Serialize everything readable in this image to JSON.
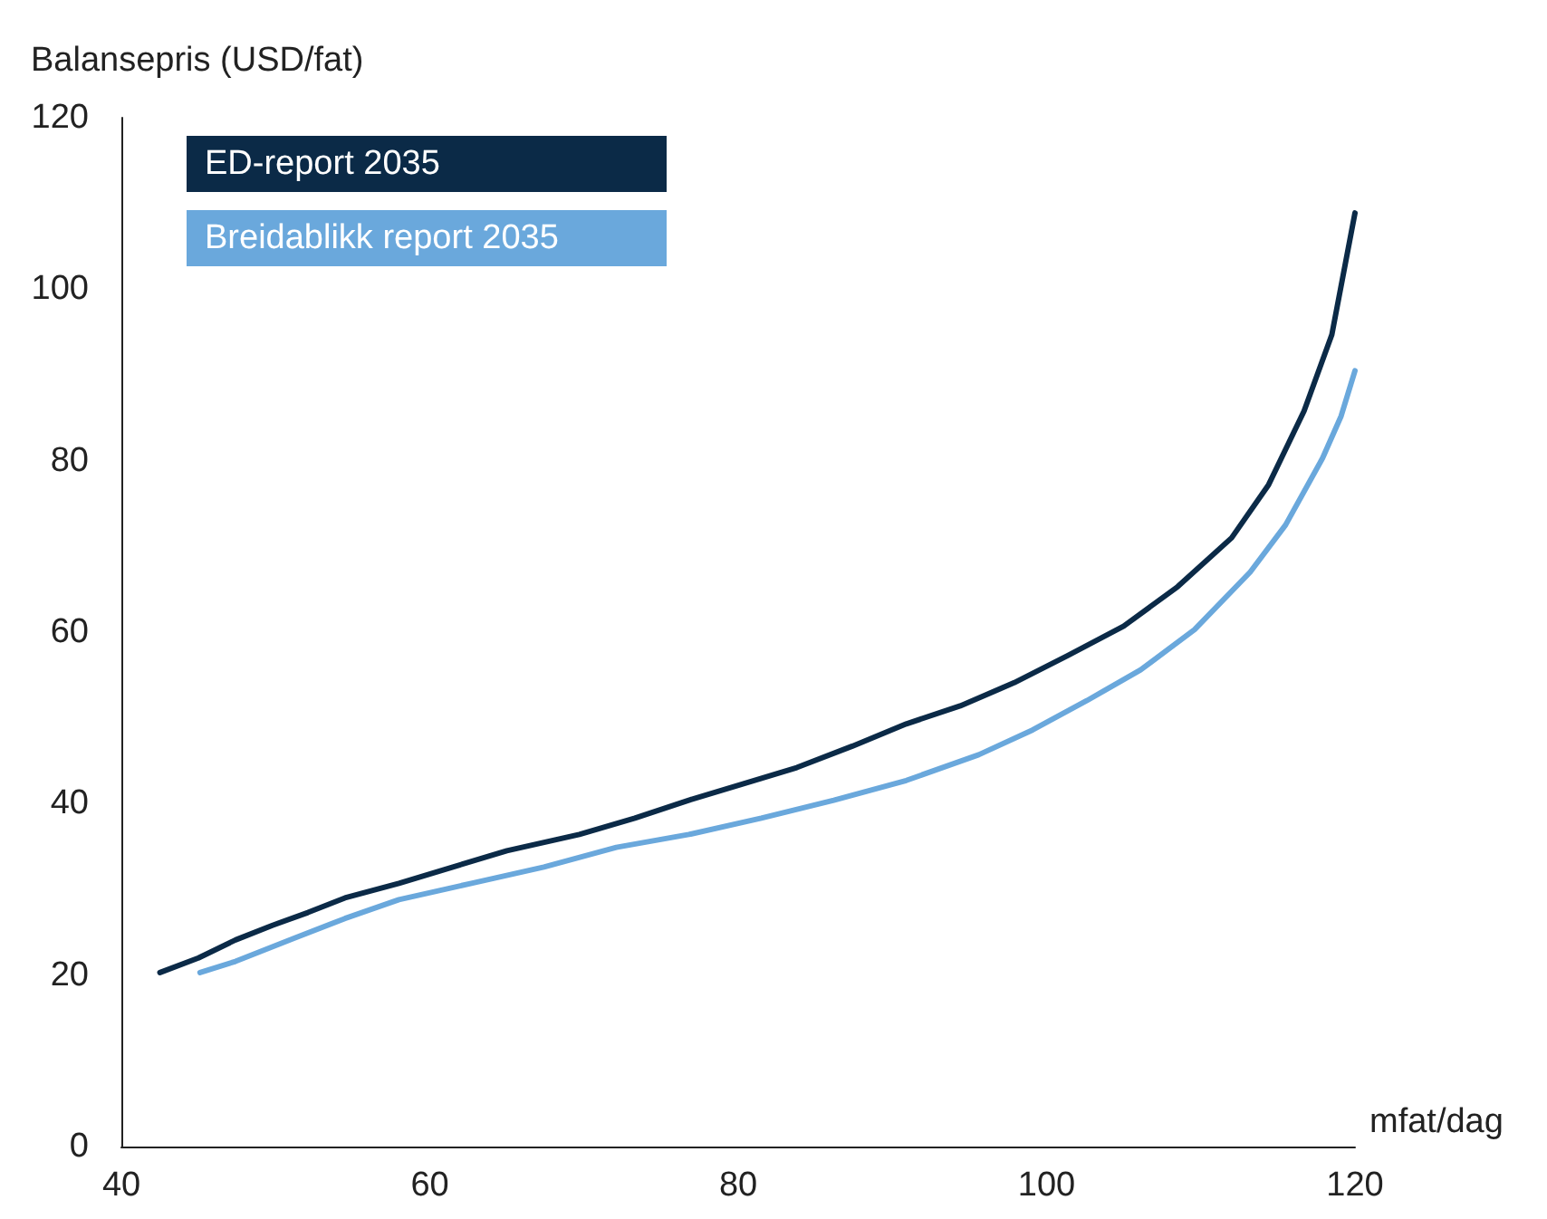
{
  "chart_data": {
    "type": "line",
    "xlabel": "mfat/dag",
    "ylabel": "Balansepris (USD/fat)",
    "xlim": [
      40,
      120
    ],
    "xticks": [
      40,
      60,
      80,
      100,
      120
    ],
    "ylim": [
      0,
      120
    ],
    "yticks": [
      0,
      20,
      40,
      60,
      80,
      100,
      120
    ],
    "grid": false,
    "legend": "top left",
    "marker": "none",
    "line_style": "solid",
    "series": [
      {
        "name": "ED-report 2035",
        "color": "#0b2a47",
        "x": [
          42.5,
          45,
          47.4,
          49.8,
          52.1,
          54.5,
          58,
          61.5,
          65,
          69.7,
          73.3,
          76.8,
          80.3,
          83.8,
          87.4,
          90.9,
          94.4,
          97.9,
          101.4,
          105,
          108.5,
          112,
          114.4,
          116.7,
          118.5,
          120
        ],
        "values": [
          20.3,
          22.0,
          24.1,
          25.8,
          27.3,
          29.0,
          30.7,
          32.6,
          34.5,
          36.4,
          38.3,
          40.4,
          42.3,
          44.2,
          46.7,
          49.3,
          51.4,
          54.1,
          57.3,
          60.7,
          65.3,
          71.0,
          77.2,
          85.8,
          94.7,
          108.9
        ]
      },
      {
        "name": "Breidablikk report 2035",
        "color": "#6aa8dc",
        "x": [
          45.1,
          47.4,
          51.2,
          54.5,
          58,
          62.7,
          67.4,
          72.1,
          76.8,
          81.5,
          86.2,
          90.9,
          95.6,
          99.1,
          102.6,
          106.1,
          109.6,
          113.2,
          115.5,
          117.9,
          119.1,
          120
        ],
        "values": [
          20.3,
          21.6,
          24.3,
          26.6,
          28.8,
          30.7,
          32.6,
          34.9,
          36.4,
          38.3,
          40.4,
          42.7,
          45.7,
          48.6,
          52.0,
          55.6,
          60.3,
          67.0,
          72.5,
          80.3,
          85.2,
          90.5
        ]
      }
    ]
  }
}
